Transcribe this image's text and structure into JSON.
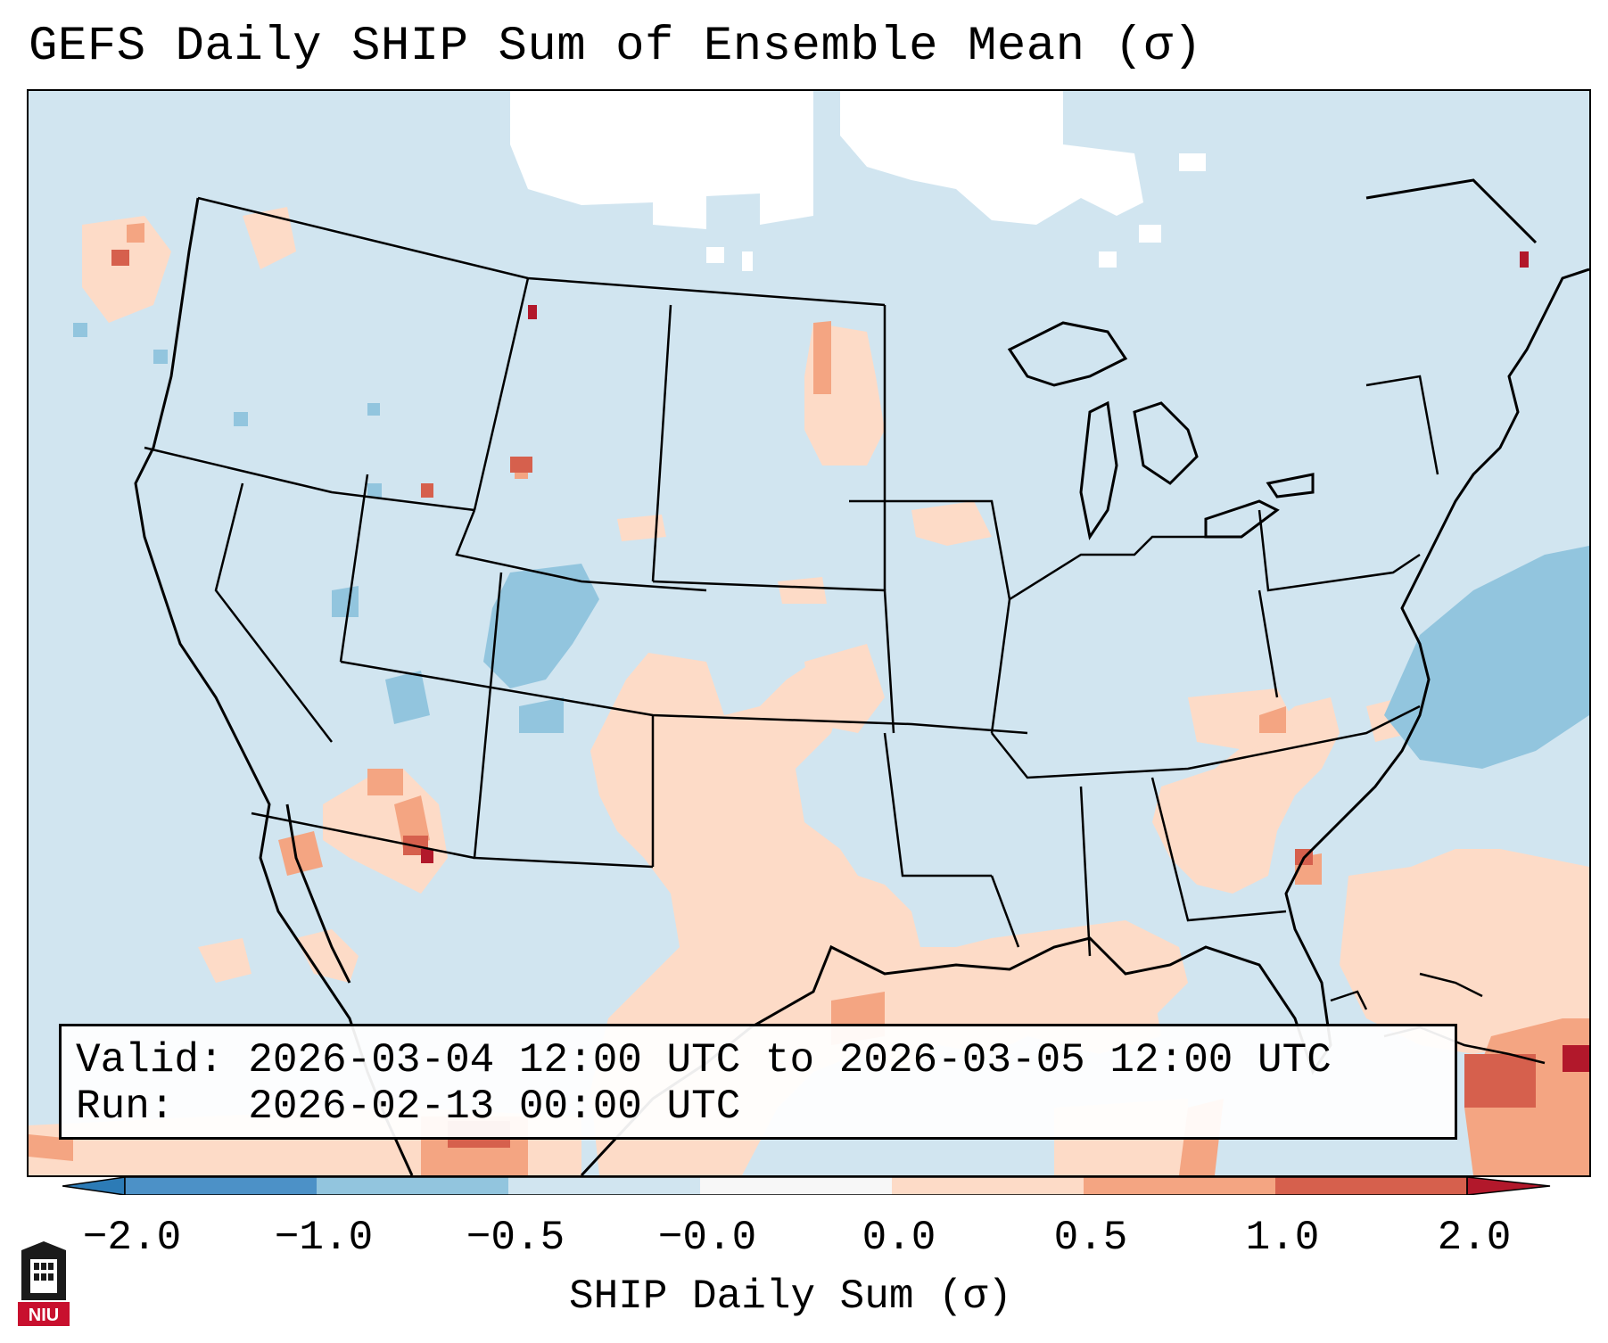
{
  "title": "GEFS Daily SHIP Sum of Ensemble Mean (σ)",
  "info": {
    "valid": "Valid: 2026-03-04 12:00 UTC to 2026-03-05 12:00 UTC",
    "run": "Run:   2026-02-13 00:00 UTC"
  },
  "colorbar": {
    "label": "SHIP Daily Sum (σ)",
    "ticks": [
      "−2.0",
      "−1.0",
      "−0.5",
      "−0.0",
      "0.0",
      "0.5",
      "1.0",
      "2.0"
    ],
    "colors": {
      "extend_low": "#2c7bb6",
      "bin_neg2_neg1": "#4c91c7",
      "bin_neg1_neg05": "#92c5de",
      "bin_neg05_0": "#d1e5f0",
      "bin_0_05": "#fddbc7",
      "bin_05_1": "#f4a582",
      "bin_1_2": "#d6604d",
      "extend_high": "#b2182b"
    }
  },
  "logo": {
    "text": "NIU",
    "icon": "niu-seal-icon"
  }
}
